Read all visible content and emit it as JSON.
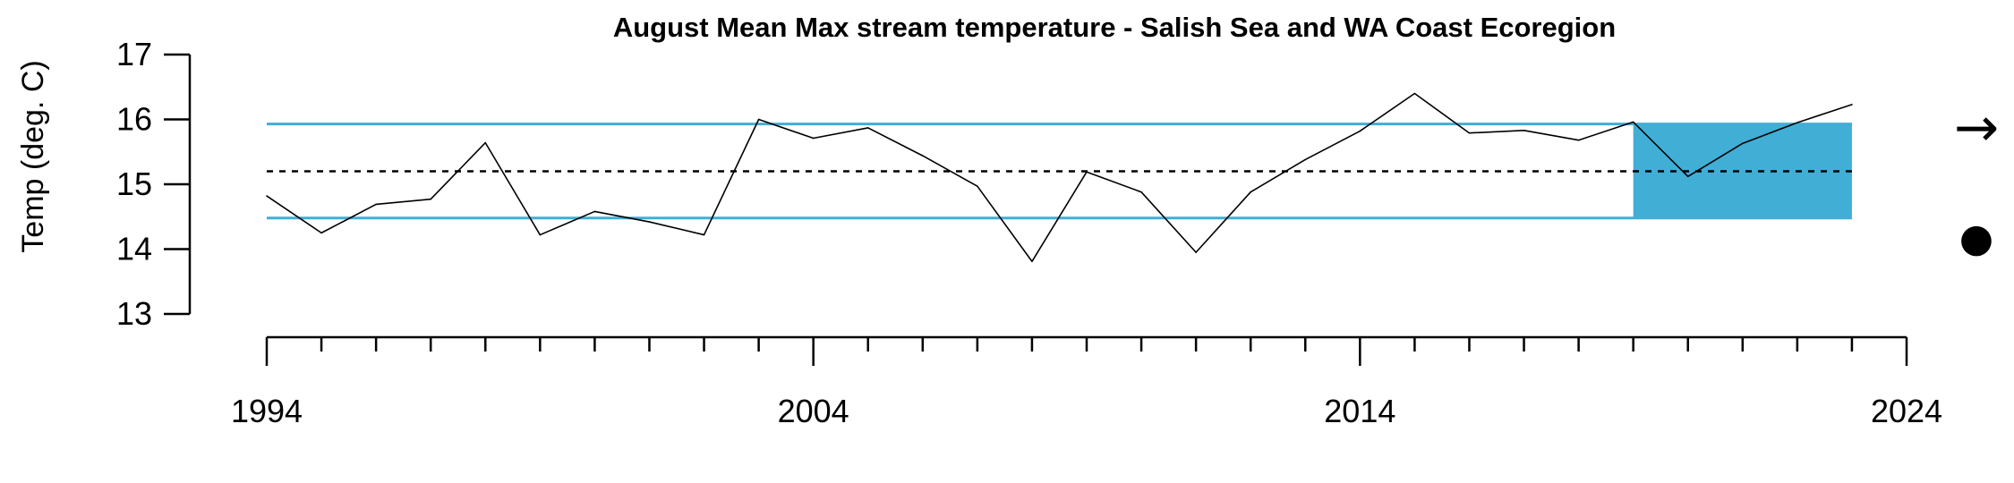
{
  "chart_data": {
    "type": "line",
    "title": "August Mean Max stream temperature - Salish Sea and WA Coast Ecoregion",
    "xlabel": "",
    "ylabel": "Temp (deg. C)",
    "xlim": [
      1994,
      2024
    ],
    "ylim": [
      13,
      17
    ],
    "x_ticks": [
      1994,
      2004,
      2014,
      2024
    ],
    "y_ticks": [
      13,
      14,
      15,
      16,
      17
    ],
    "x": [
      1994,
      1995,
      1996,
      1997,
      1998,
      1999,
      2000,
      2001,
      2002,
      2003,
      2004,
      2005,
      2006,
      2007,
      2008,
      2009,
      2010,
      2011,
      2012,
      2013,
      2014,
      2015,
      2016,
      2017,
      2018,
      2019,
      2020,
      2021,
      2022,
      2023
    ],
    "series": [
      {
        "name": "August Mean Max stream temperature",
        "values": [
          14.82,
          14.25,
          14.69,
          14.77,
          15.64,
          14.22,
          14.58,
          14.42,
          14.22,
          16.0,
          15.71,
          15.87,
          15.44,
          14.97,
          13.81,
          15.19,
          14.88,
          13.95,
          14.88,
          15.38,
          15.82,
          16.4,
          15.79,
          15.83,
          15.68,
          15.96,
          15.12,
          15.63,
          15.95,
          16.23
        ]
      }
    ],
    "reference_lines": {
      "mean": 15.2,
      "upper_sd": 15.93,
      "lower_sd": 14.48
    },
    "recent_window": {
      "x_start": 2019,
      "x_end": 2023
    },
    "colors": {
      "band": "#41aed6",
      "line": "#000000"
    },
    "trend_indicator": {
      "symbol": "→",
      "meaning": "no trend"
    },
    "mean_indicator": {
      "symbol": "●",
      "meaning": "within one standard deviation"
    }
  }
}
